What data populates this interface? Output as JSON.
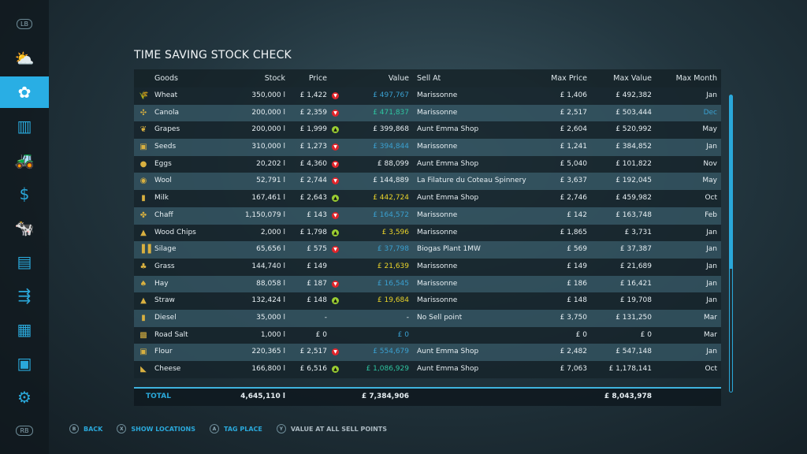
{
  "title": "TIME SAVING STOCK CHECK",
  "colors": {
    "accent": "#29aee4",
    "down": "#e0242a",
    "up": "#9acd32",
    "blue": "#3aa0d0",
    "teal": "#2ec4a0",
    "yellow": "#e8d22a",
    "white": "#e6eef2"
  },
  "sidebar": {
    "top_button": "LB",
    "bottom_button": "RB",
    "items": [
      {
        "icon": "weather-icon",
        "glyph": "⛅"
      },
      {
        "icon": "prices-icon",
        "glyph": "✿",
        "active": true
      },
      {
        "icon": "statistics-icon",
        "glyph": "▥"
      },
      {
        "icon": "tractor-icon",
        "glyph": "🚜"
      },
      {
        "icon": "finances-icon",
        "glyph": "$"
      },
      {
        "icon": "animals-icon",
        "glyph": "🐄"
      },
      {
        "icon": "contracts-icon",
        "glyph": "▤"
      },
      {
        "icon": "production-icon",
        "glyph": "⇶"
      },
      {
        "icon": "storage-icon",
        "glyph": "▦"
      },
      {
        "icon": "help-icon",
        "glyph": "▣"
      },
      {
        "icon": "settings-icon",
        "glyph": "⚙"
      }
    ]
  },
  "headers": {
    "goods": "Goods",
    "stock": "Stock",
    "price": "Price",
    "value": "Value",
    "sell": "Sell At",
    "maxp": "Max Price",
    "maxv": "Max Value",
    "maxm": "Max Month"
  },
  "rows": [
    {
      "goods": "Wheat",
      "glyph": "🌾",
      "stock": "350,000 l",
      "price": "£ 1,422",
      "trend": "down",
      "value": "£ 497,767",
      "vcolor": "blue",
      "sell": "Marissonne",
      "maxp": "£ 1,406",
      "maxv": "£ 492,382",
      "maxm": "Jan"
    },
    {
      "goods": "Canola",
      "glyph": "✣",
      "stock": "200,000 l",
      "price": "£ 2,359",
      "trend": "down",
      "value": "£ 471,837",
      "vcolor": "teal",
      "sell": "Marissonne",
      "maxp": "£ 2,517",
      "maxv": "£ 503,444",
      "maxm": "Dec",
      "mcolor": "blue"
    },
    {
      "goods": "Grapes",
      "glyph": "❦",
      "stock": "200,000 l",
      "price": "£ 1,999",
      "trend": "up",
      "value": "£ 399,868",
      "vcolor": "white",
      "sell": "Aunt Emma Shop",
      "maxp": "£ 2,604",
      "maxv": "£ 520,992",
      "maxm": "May"
    },
    {
      "goods": "Seeds",
      "glyph": "▣",
      "stock": "310,000 l",
      "price": "£ 1,273",
      "trend": "down",
      "value": "£ 394,844",
      "vcolor": "blue",
      "sell": "Marissonne",
      "maxp": "£ 1,241",
      "maxv": "£ 384,852",
      "maxm": "Jan"
    },
    {
      "goods": "Eggs",
      "glyph": "●",
      "stock": "20,202 l",
      "price": "£ 4,360",
      "trend": "down",
      "value": "£ 88,099",
      "vcolor": "white",
      "sell": "Aunt Emma Shop",
      "maxp": "£ 5,040",
      "maxv": "£ 101,822",
      "maxm": "Nov"
    },
    {
      "goods": "Wool",
      "glyph": "◉",
      "stock": "52,791 l",
      "price": "£ 2,744",
      "trend": "down",
      "value": "£ 144,889",
      "vcolor": "white",
      "sell": "La Filature du Coteau Spinnery",
      "maxp": "£ 3,637",
      "maxv": "£ 192,045",
      "maxm": "May"
    },
    {
      "goods": "Milk",
      "glyph": "▮",
      "stock": "167,461 l",
      "price": "£ 2,643",
      "trend": "up",
      "value": "£ 442,724",
      "vcolor": "yellow",
      "sell": "Aunt Emma Shop",
      "maxp": "£ 2,746",
      "maxv": "£ 459,982",
      "maxm": "Oct"
    },
    {
      "goods": "Chaff",
      "glyph": "✤",
      "stock": "1,150,079 l",
      "price": "£ 143",
      "trend": "down",
      "value": "£ 164,572",
      "vcolor": "blue",
      "sell": "Marissonne",
      "maxp": "£ 142",
      "maxv": "£ 163,748",
      "maxm": "Feb"
    },
    {
      "goods": "Wood Chips",
      "glyph": "▲",
      "stock": "2,000 l",
      "price": "£ 1,798",
      "trend": "up",
      "value": "£ 3,596",
      "vcolor": "yellow",
      "sell": "Marissonne",
      "maxp": "£ 1,865",
      "maxv": "£ 3,731",
      "maxm": "Jan"
    },
    {
      "goods": "Silage",
      "glyph": "▐▐",
      "stock": "65,656 l",
      "price": "£ 575",
      "trend": "down",
      "value": "£ 37,798",
      "vcolor": "blue",
      "sell": "Biogas Plant 1MW",
      "maxp": "£ 569",
      "maxv": "£ 37,387",
      "maxm": "Jan"
    },
    {
      "goods": "Grass",
      "glyph": "♣",
      "stock": "144,740 l",
      "price": "£ 149",
      "trend": "",
      "value": "£ 21,639",
      "vcolor": "yellow",
      "sell": "Marissonne",
      "maxp": "£ 149",
      "maxv": "£ 21,689",
      "maxm": "Jan"
    },
    {
      "goods": "Hay",
      "glyph": "♠",
      "stock": "88,058 l",
      "price": "£ 187",
      "trend": "down",
      "value": "£ 16,545",
      "vcolor": "blue",
      "sell": "Marissonne",
      "maxp": "£ 186",
      "maxv": "£ 16,421",
      "maxm": "Jan"
    },
    {
      "goods": "Straw",
      "glyph": "▲",
      "stock": "132,424 l",
      "price": "£ 148",
      "trend": "up",
      "value": "£ 19,684",
      "vcolor": "yellow",
      "sell": "Marissonne",
      "maxp": "£ 148",
      "maxv": "£ 19,708",
      "maxm": "Jan"
    },
    {
      "goods": "Diesel",
      "glyph": "▮",
      "stock": "35,000 l",
      "price": "-",
      "trend": "",
      "value": "-",
      "vcolor": "white",
      "sell": "No Sell point",
      "maxp": "£ 3,750",
      "maxv": "£ 131,250",
      "maxm": "Mar"
    },
    {
      "goods": "Road Salt",
      "glyph": "▩",
      "stock": "1,000 l",
      "price": "£ 0",
      "trend": "",
      "value": "£ 0",
      "vcolor": "blue",
      "sell": "",
      "maxp": "£ 0",
      "maxv": "£ 0",
      "maxm": "Mar"
    },
    {
      "goods": "Flour",
      "glyph": "▣",
      "stock": "220,365 l",
      "price": "£ 2,517",
      "trend": "down",
      "value": "£ 554,679",
      "vcolor": "blue",
      "sell": "Aunt Emma Shop",
      "maxp": "£ 2,482",
      "maxv": "£ 547,148",
      "maxm": "Jan"
    },
    {
      "goods": "Cheese",
      "glyph": "◣",
      "stock": "166,800 l",
      "price": "£ 6,516",
      "trend": "up",
      "value": "£ 1,086,929",
      "vcolor": "teal",
      "sell": "Aunt Emma Shop",
      "maxp": "£ 7,063",
      "maxv": "£ 1,178,141",
      "maxm": "Oct"
    }
  ],
  "total": {
    "label": "TOTAL",
    "stock": "4,645,110 l",
    "value": "£ 7,384,906",
    "maxv": "£ 8,043,978"
  },
  "footer": [
    {
      "key": "B",
      "label": "BACK"
    },
    {
      "key": "X",
      "label": "SHOW LOCATIONS"
    },
    {
      "key": "A",
      "label": "TAG PLACE"
    },
    {
      "key": "Y",
      "label": "VALUE AT ALL SELL POINTS",
      "alt": true
    }
  ]
}
